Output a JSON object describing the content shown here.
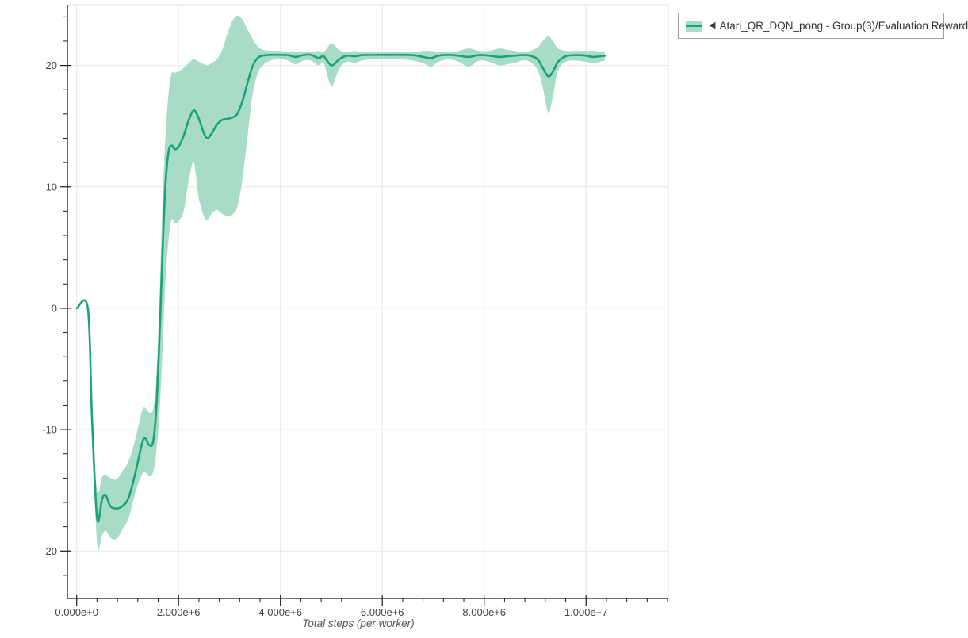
{
  "legend": {
    "marker": "◀",
    "label": "Atari_QR_DQN_pong - Group(3)/Evaluation Reward"
  },
  "colors": {
    "line": "#1ba27d",
    "band": "#a8dcc7",
    "grid": "#e8e8e8",
    "plot_border": "#e0e0e0",
    "axis": "#1a1a1a",
    "tick_label": "#454545",
    "axis_title": "#555555",
    "legend_border": "#9e9e9e",
    "legend_text": "#303030",
    "background": "#ffffff"
  },
  "chart_data": {
    "type": "line",
    "title": "",
    "xlabel": "Total steps (per worker)",
    "ylabel": "",
    "grid": true,
    "legend_position": "top-right",
    "legend_entries": [
      "Atari_QR_DQN_pong - Group(3)/Evaluation Reward"
    ],
    "x_tick_values": [
      0,
      2000000,
      4000000,
      6000000,
      8000000,
      10000000
    ],
    "x_tick_labels": [
      "0.000e+0",
      "2.000e+6",
      "4.000e+6",
      "6.000e+6",
      "8.000e+6",
      "1.000e+7"
    ],
    "x_minor_step": 400000,
    "y_tick_values": [
      -20,
      -10,
      0,
      10,
      20
    ],
    "y_tick_labels": [
      "-20",
      "-10",
      "0",
      "10",
      "20"
    ],
    "y_minor_step": 2,
    "xlim": [
      -182000,
      11615000
    ],
    "ylim": [
      -23.9,
      25.0
    ],
    "series": [
      {
        "name": "Atari_QR_DQN_pong - Group(3)/Evaluation Reward",
        "color": "#1ba27d",
        "band_color": "#a8dcc7",
        "x": [
          0,
          220000,
          300000,
          400000,
          500000,
          570000,
          660000,
          780000,
          900000,
          1020000,
          1150000,
          1280000,
          1340000,
          1430000,
          1500000,
          1560000,
          1620000,
          1680000,
          1740000,
          1800000,
          1860000,
          1930000,
          2000000,
          2100000,
          2200000,
          2300000,
          2400000,
          2500000,
          2570000,
          2650000,
          2750000,
          2850000,
          2950000,
          3050000,
          3150000,
          3250000,
          3350000,
          3450000,
          3550000,
          3650000,
          3800000,
          4000000,
          4150000,
          4300000,
          4450000,
          4600000,
          4750000,
          4850000,
          5000000,
          5150000,
          5300000,
          5450000,
          5600000,
          5800000,
          6000000,
          6200000,
          6400000,
          6600000,
          6800000,
          6950000,
          7100000,
          7300000,
          7500000,
          7700000,
          7900000,
          8100000,
          8300000,
          8450000,
          8600000,
          8750000,
          8900000,
          9050000,
          9150000,
          9260000,
          9350000,
          9450000,
          9600000,
          9800000,
          10000000,
          10150000,
          10370000
        ],
        "mean": [
          0,
          0,
          -9,
          -17.3,
          -15.7,
          -15.4,
          -16.3,
          -16.5,
          -16.3,
          -15.6,
          -13.6,
          -11.2,
          -10.7,
          -11.3,
          -11.0,
          -8.5,
          -3,
          4,
          10,
          12.8,
          13.4,
          13.1,
          13.3,
          14.2,
          15.5,
          16.3,
          15.6,
          14.4,
          14.0,
          14.4,
          15.1,
          15.5,
          15.6,
          15.7,
          16.0,
          17.0,
          18.5,
          19.9,
          20.6,
          20.8,
          20.87,
          20.87,
          20.85,
          20.7,
          20.85,
          20.87,
          20.6,
          20.75,
          20.0,
          20.5,
          20.8,
          20.75,
          20.85,
          20.87,
          20.87,
          20.87,
          20.87,
          20.85,
          20.7,
          20.6,
          20.8,
          20.87,
          20.8,
          20.7,
          20.85,
          20.8,
          20.7,
          20.75,
          20.8,
          20.85,
          20.8,
          20.5,
          19.8,
          19.1,
          19.5,
          20.3,
          20.75,
          20.85,
          20.8,
          20.7,
          20.8
        ],
        "band_lo": [
          0,
          0,
          -9.5,
          -19.3,
          -18.7,
          -18.3,
          -18.9,
          -19.0,
          -18.2,
          -17.3,
          -15.2,
          -13.7,
          -13.5,
          -13.8,
          -13.5,
          -12,
          -9,
          -4,
          2,
          5.5,
          7.3,
          7.0,
          7.2,
          8.0,
          10.5,
          12.0,
          9.0,
          7.6,
          7.3,
          7.8,
          8.1,
          7.8,
          7.6,
          7.7,
          8.3,
          10.5,
          14,
          17.5,
          19.3,
          20.0,
          20.4,
          20.5,
          20.4,
          20.1,
          20.4,
          20.4,
          20.0,
          20.2,
          18.3,
          19.7,
          20.3,
          20.2,
          20.4,
          20.5,
          20.5,
          20.5,
          20.5,
          20.4,
          20.2,
          19.9,
          20.3,
          20.5,
          20.3,
          19.9,
          20.4,
          20.3,
          20.0,
          20.1,
          20.2,
          20.4,
          20.3,
          19.6,
          18.2,
          16.1,
          17.5,
          19.6,
          20.3,
          20.4,
          20.3,
          20.2,
          20.4
        ],
        "band_hi": [
          0,
          0,
          -8.5,
          -15.0,
          -13.9,
          -13.7,
          -14.0,
          -14.1,
          -13.4,
          -12.6,
          -10.8,
          -8.5,
          -8.2,
          -8.6,
          -8.3,
          -6,
          0,
          8,
          14,
          17.5,
          19.3,
          19.4,
          19.5,
          19.8,
          20.2,
          20.5,
          20.3,
          20.1,
          20.0,
          20.2,
          20.5,
          21.2,
          22.5,
          23.6,
          24.1,
          23.8,
          23.0,
          22.2,
          21.6,
          21.3,
          21.2,
          21.2,
          21.1,
          21.1,
          21.1,
          21.1,
          21.2,
          21.1,
          21.8,
          21.3,
          21.1,
          21.2,
          21.1,
          21.1,
          21.1,
          21.1,
          21.1,
          21.1,
          21.2,
          21.2,
          21.1,
          21.1,
          21.2,
          21.4,
          21.2,
          21.2,
          21.4,
          21.3,
          21.2,
          21.1,
          21.2,
          21.5,
          22.0,
          22.4,
          22.0,
          21.4,
          21.2,
          21.2,
          21.2,
          21.2,
          21.1
        ]
      }
    ]
  }
}
